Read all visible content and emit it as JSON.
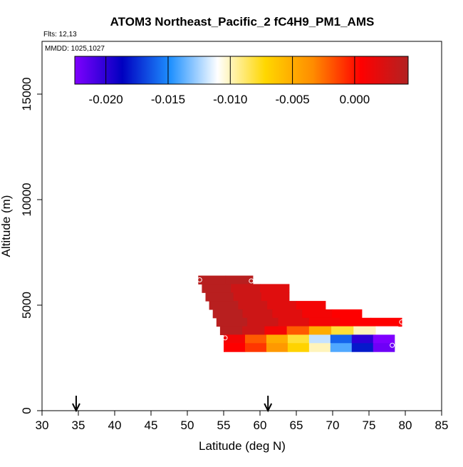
{
  "chart_data": {
    "type": "heatmap",
    "title": "ATOM3 Northeast_Pacific_2 fC4H9_PM1_AMS",
    "flights_label": "Flts: 12,13",
    "date_label": "MMDD: 1025,1027",
    "xlabel": "Latitude (deg N)",
    "ylabel": "Altitude (m)",
    "xlim": [
      30,
      85
    ],
    "ylim": [
      0,
      17500
    ],
    "x_ticks": [
      "30",
      "35",
      "40",
      "45",
      "50",
      "55",
      "60",
      "65",
      "70",
      "75",
      "80",
      "85"
    ],
    "y_ticks": [
      "0",
      "5000",
      "10000",
      "15000"
    ],
    "colorbar": {
      "range": [
        -0.0225,
        0.0043
      ],
      "ticks": [
        "-0.020",
        "-0.015",
        "-0.010",
        "-0.005",
        "0.000"
      ],
      "tick_values": [
        -0.02,
        -0.015,
        -0.01,
        -0.005,
        0.0
      ],
      "colors": [
        "#7f00ff",
        "#0000c0",
        "#1e90ff",
        "#ffffff",
        "#ffd700",
        "#ff8c00",
        "#ff0000",
        "#b22222"
      ]
    },
    "grid": false,
    "rows": [
      {
        "alt_bottom": 6000,
        "alt_top": 6400,
        "lat_start": 51.5,
        "lat_end": 59,
        "values": [
          0.004,
          0.004
        ]
      },
      {
        "alt_bottom": 5600,
        "alt_top": 6000,
        "lat_start": 52,
        "lat_end": 64,
        "values": [
          0.004,
          0.003,
          0.002
        ]
      },
      {
        "alt_bottom": 5200,
        "alt_top": 5600,
        "lat_start": 52.5,
        "lat_end": 64,
        "values": [
          0.004,
          0.003,
          0.002
        ]
      },
      {
        "alt_bottom": 4800,
        "alt_top": 5200,
        "lat_start": 53,
        "lat_end": 69,
        "values": [
          0.004,
          0.003,
          0.002,
          0.001
        ]
      },
      {
        "alt_bottom": 4400,
        "alt_top": 4800,
        "lat_start": 53.5,
        "lat_end": 74,
        "values": [
          0.004,
          0.003,
          0.002,
          0.001,
          0.0005
        ]
      },
      {
        "alt_bottom": 4000,
        "alt_top": 4400,
        "lat_start": 54,
        "lat_end": 79.5,
        "values": [
          0.004,
          0.003,
          0.002,
          0.001,
          0.0005,
          0.0005
        ]
      },
      {
        "alt_bottom": 3600,
        "alt_top": 4000,
        "lat_start": 54.5,
        "lat_end": 79,
        "values": [
          0.004,
          0.003,
          0.001,
          -0.002,
          -0.005,
          -0.008,
          -0.01,
          -0.011
        ]
      },
      {
        "alt_bottom": 3200,
        "alt_top": 3600,
        "lat_start": 55,
        "lat_end": 78.5,
        "values": [
          0.001,
          -0.002,
          -0.005,
          -0.008,
          -0.012,
          -0.016,
          -0.02,
          -0.0225
        ]
      },
      {
        "alt_bottom": 2800,
        "alt_top": 3200,
        "lat_start": 55,
        "lat_end": 78.5,
        "values": [
          0.0005,
          -0.001,
          -0.004,
          -0.007,
          -0.01,
          -0.014,
          -0.018,
          -0.022
        ]
      }
    ],
    "markers": [
      {
        "lat": 51.7,
        "alt": 6200
      },
      {
        "lat": 58.8,
        "alt": 6150
      },
      {
        "lat": 79.5,
        "alt": 4200
      },
      {
        "lat": 55.2,
        "alt": 3450
      },
      {
        "lat": 78.2,
        "alt": 3100
      }
    ],
    "arrows": [
      {
        "lat": 34.7
      },
      {
        "lat": 61.1
      }
    ]
  }
}
